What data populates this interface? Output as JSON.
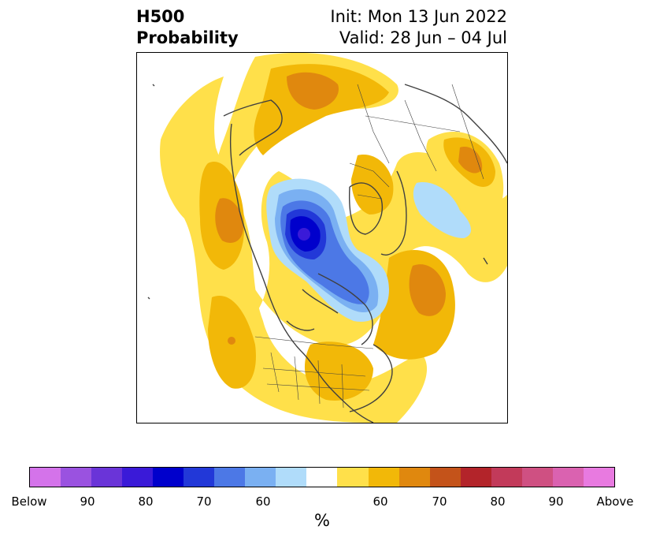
{
  "header": {
    "title_line1": "H500",
    "title_line2": "Probability",
    "init": "Init: Mon 13 Jun 2022",
    "valid": "Valid: 28 Jun – 04 Jul"
  },
  "colorbar": {
    "colors": [
      "#d473ea",
      "#9a52e0",
      "#6a34d8",
      "#3a1ad8",
      "#0000cc",
      "#2238d8",
      "#4c78e6",
      "#7ab0f2",
      "#b0dcfa",
      "#ffffff",
      "#ffe04a",
      "#f2b808",
      "#e0880e",
      "#c4531a",
      "#b3242a",
      "#c23a5a",
      "#cf5082",
      "#da62b0",
      "#e87ae0"
    ],
    "ticks": [
      {
        "label": "Below"
      },
      {
        "label": "90"
      },
      {
        "label": "80"
      },
      {
        "label": "70"
      },
      {
        "label": "60"
      },
      {
        "label": "60"
      },
      {
        "label": "70"
      },
      {
        "label": "80"
      },
      {
        "label": "90"
      },
      {
        "label": "Above"
      }
    ],
    "unit": "%"
  },
  "map": {
    "projection": "north-polar-stereographic",
    "colors": {
      "light_yellow": "#ffe04a",
      "gold": "#f2b808",
      "orange": "#e0880e",
      "pale_blue": "#b0dcfa",
      "light_blue": "#7ab0f2",
      "mid_blue": "#4c78e6",
      "blue": "#2238d8",
      "deep_blue": "#0000cc",
      "violet_blue": "#3a1ad8",
      "coast": "#404040"
    }
  }
}
